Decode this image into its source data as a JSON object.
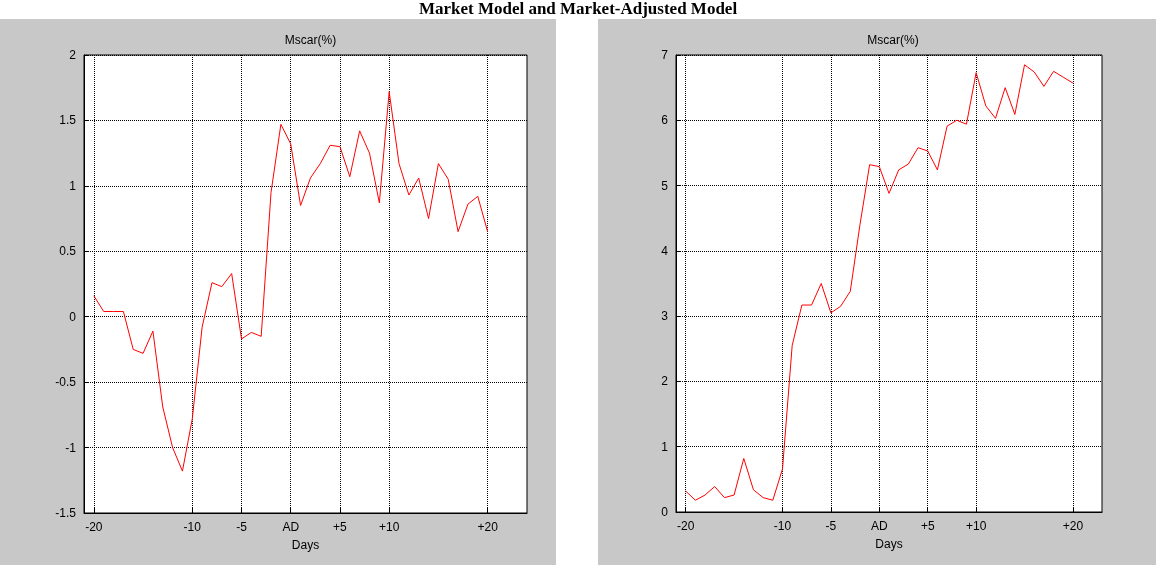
{
  "chart_data": [
    {
      "type": "line",
      "title": "Mscar(%)",
      "xlabel": "Days",
      "annotations": [
        "Market Model and Market-Adjusted Model"
      ],
      "x": [
        -20,
        -19,
        -18,
        -17,
        -16,
        -15,
        -14,
        -13,
        -12,
        -11,
        -10,
        -9,
        -8,
        -7,
        -6,
        -5,
        -4,
        -3,
        -2,
        -1,
        0,
        1,
        2,
        3,
        4,
        5,
        6,
        7,
        8,
        9,
        10,
        11,
        12,
        13,
        14,
        15,
        16,
        17,
        18,
        19,
        20
      ],
      "series": [
        {
          "color": "#ff0000",
          "values": [
            0.16,
            0.04,
            0.04,
            0.04,
            -0.25,
            -0.28,
            -0.11,
            -0.69,
            -1.0,
            -1.18,
            -0.78,
            -0.08,
            0.26,
            0.23,
            0.33,
            -0.17,
            -0.12,
            -0.15,
            0.95,
            1.47,
            1.32,
            0.85,
            1.06,
            1.17,
            1.31,
            1.3,
            1.07,
            1.42,
            1.25,
            0.87,
            1.72,
            1.17,
            0.93,
            1.06,
            0.75,
            1.17,
            1.05,
            0.65,
            0.86,
            0.92,
            0.65
          ]
        }
      ],
      "xlim": [
        -21,
        24
      ],
      "xticks": [
        -20,
        -10,
        -5,
        {
          "value": 0,
          "label": "AD"
        },
        {
          "value": 5,
          "label": "+5"
        },
        {
          "value": 10,
          "label": "+10"
        },
        {
          "value": 20,
          "label": "+20"
        }
      ],
      "ylim": [
        -1.5,
        2
      ],
      "yticks": [
        -1.5,
        -1,
        -0.5,
        0,
        0.5,
        1,
        1.5,
        2
      ],
      "grid": true,
      "marker": "none",
      "line_style": "solid"
    },
    {
      "type": "line",
      "title": "Mscar(%)",
      "xlabel": "Days",
      "x": [
        -20,
        -19,
        -18,
        -17,
        -16,
        -15,
        -14,
        -13,
        -12,
        -11,
        -10,
        -9,
        -8,
        -7,
        -6,
        -5,
        -4,
        -3,
        -2,
        -1,
        0,
        1,
        2,
        3,
        4,
        5,
        6,
        7,
        8,
        9,
        10,
        11,
        12,
        13,
        14,
        15,
        16,
        17,
        18,
        19,
        20
      ],
      "series": [
        {
          "color": "#ff0000",
          "values": [
            0.32,
            0.18,
            0.26,
            0.39,
            0.22,
            0.26,
            0.82,
            0.34,
            0.22,
            0.18,
            0.66,
            2.55,
            3.17,
            3.17,
            3.5,
            3.05,
            3.15,
            3.38,
            4.4,
            5.32,
            5.29,
            4.88,
            5.24,
            5.33,
            5.58,
            5.53,
            5.24,
            5.91,
            6.0,
            5.94,
            6.73,
            6.22,
            6.03,
            6.5,
            6.09,
            6.85,
            6.74,
            6.52,
            6.75,
            6.66,
            6.57
          ]
        }
      ],
      "xlim": [
        -21,
        23
      ],
      "xticks": [
        -20,
        -10,
        -5,
        {
          "value": 0,
          "label": "AD"
        },
        {
          "value": 5,
          "label": "+5"
        },
        {
          "value": 10,
          "label": "+10"
        },
        {
          "value": 20,
          "label": "+20"
        }
      ],
      "ylim": [
        0,
        7
      ],
      "yticks": [
        0,
        1,
        2,
        3,
        4,
        5,
        6,
        7
      ],
      "grid": true,
      "marker": "none",
      "line_style": "solid"
    }
  ]
}
